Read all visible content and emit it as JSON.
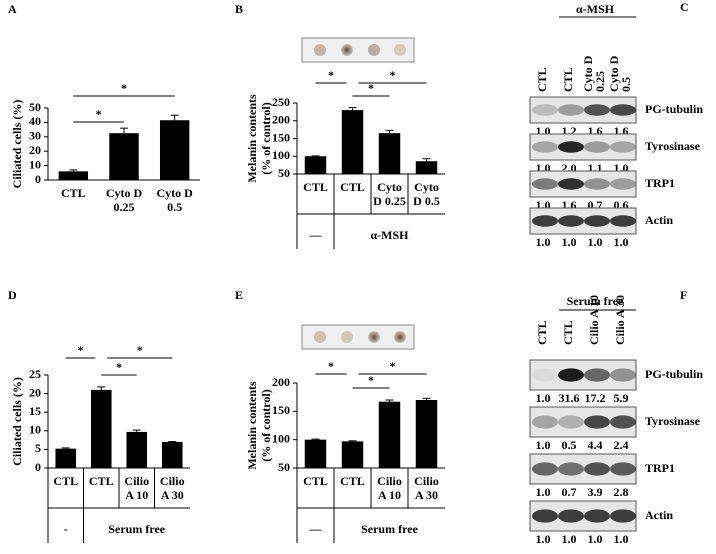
{
  "chart_data": [
    {
      "type": "bar",
      "panel": "A",
      "ylabel": [
        "Ciliated cells (%)"
      ],
      "categories": [
        [
          "CTL"
        ],
        [
          "Cyto D",
          "0.25"
        ],
        [
          "Cyto D",
          "0.5"
        ]
      ],
      "values": [
        6,
        32.5,
        41.5
      ],
      "errors": [
        1,
        3.5,
        3.5
      ],
      "color": "#000000",
      "ylim": [
        0,
        50
      ],
      "yticks": [
        0,
        10,
        20,
        30,
        40,
        50
      ],
      "significance": [
        {
          "pair": [
            0,
            1
          ],
          "label": "*"
        },
        {
          "pair": [
            0,
            2
          ],
          "label": "*"
        }
      ]
    },
    {
      "type": "bar",
      "panel": "B",
      "ylabel": [
        "Melanin contents",
        "(% of control)"
      ],
      "categories": [
        [
          "CTL"
        ],
        [
          "CTL"
        ],
        [
          "Cyto",
          "D 0.25"
        ],
        [
          "Cyto",
          "D 0.5"
        ]
      ],
      "values": [
        100,
        230,
        165,
        86
      ],
      "errors": [
        1,
        7,
        8,
        7
      ],
      "color": "#000000",
      "ylim": [
        50,
        250
      ],
      "yticks": [
        50,
        100,
        150,
        200,
        250
      ],
      "groups": [
        {
          "label": "—",
          "span": 1
        },
        {
          "label": "α-MSH",
          "span": 3
        }
      ],
      "significance": [
        {
          "pair": [
            0,
            1
          ],
          "label": "*"
        },
        {
          "pair": [
            1,
            2
          ],
          "label": "*"
        },
        {
          "pair": [
            1,
            3
          ],
          "label": "*"
        }
      ]
    },
    {
      "type": "bar",
      "panel": "D",
      "ylabel": [
        "Ciliated cells (%)"
      ],
      "categories": [
        [
          "CTL"
        ],
        [
          "CTL"
        ],
        [
          "Cilio",
          "A 10"
        ],
        [
          "Cilio",
          "A 30"
        ]
      ],
      "values": [
        5.2,
        21,
        9.7,
        7
      ],
      "errors": [
        0.2,
        0.8,
        0.5,
        0.1
      ],
      "color": "#000000",
      "ylim": [
        0,
        25
      ],
      "yticks": [
        0,
        5,
        10,
        15,
        20,
        25
      ],
      "groups": [
        {
          "label": "-",
          "span": 1
        },
        {
          "label": "Serum free",
          "span": 3
        }
      ],
      "significance": [
        {
          "pair": [
            0,
            1
          ],
          "label": "*"
        },
        {
          "pair": [
            1,
            2
          ],
          "label": "*"
        },
        {
          "pair": [
            1,
            3
          ],
          "label": "*"
        }
      ]
    },
    {
      "type": "bar",
      "panel": "E",
      "ylabel": [
        "Melanin contents",
        "(% of control)"
      ],
      "categories": [
        [
          "CTL"
        ],
        [
          "CTL"
        ],
        [
          "Cilio",
          "A 10"
        ],
        [
          "Cilio",
          "A 30"
        ]
      ],
      "values": [
        100,
        97,
        167,
        170
      ],
      "errors": [
        1,
        1,
        3,
        3
      ],
      "color": "#000000",
      "ylim": [
        50,
        200
      ],
      "yticks": [
        50,
        100,
        150,
        200
      ],
      "groups": [
        {
          "label": "—",
          "span": 1
        },
        {
          "label": "Serum free",
          "span": 3
        }
      ],
      "significance": [
        {
          "pair": [
            0,
            1
          ],
          "label": "*"
        },
        {
          "pair": [
            1,
            2
          ],
          "label": "*"
        },
        {
          "pair": [
            1,
            3
          ],
          "label": "*"
        }
      ]
    }
  ],
  "blots": [
    {
      "panel": "C",
      "group": "α-MSH",
      "lanes": [
        [
          "CTL"
        ],
        [
          "CTL"
        ],
        [
          "Cyto D",
          "0.25"
        ],
        [
          "Cyto D",
          "0.5"
        ]
      ],
      "rows": [
        {
          "protein": "PG-tubulin",
          "values": [
            "1.0",
            "1.2",
            "1.6",
            "1.6"
          ]
        },
        {
          "protein": "Tyrosinase",
          "values": [
            "1.0",
            "2.0",
            "1.1",
            "1.0"
          ]
        },
        {
          "protein": "TRP1",
          "values": [
            "1.0",
            "1.6",
            "0.7",
            "0.6"
          ]
        },
        {
          "protein": "Actin",
          "values": [
            "1.0",
            "1.0",
            "1.0",
            "1.0"
          ]
        }
      ]
    },
    {
      "panel": "F",
      "group": "Serum free",
      "lanes": [
        [
          "CTL"
        ],
        [
          "CTL"
        ],
        [
          "Cilio A 10"
        ],
        [
          "Cilio A 30"
        ]
      ],
      "rows": [
        {
          "protein": "PG-tubulin",
          "values": [
            "1.0",
            "31.6",
            "17.2",
            "5.9"
          ]
        },
        {
          "protein": "Tyrosinase",
          "values": [
            "1.0",
            "0.5",
            "4.4",
            "2.4"
          ]
        },
        {
          "protein": "TRP1",
          "values": [
            "1.0",
            "0.7",
            "3.9",
            "2.8"
          ]
        },
        {
          "protein": "Actin",
          "values": [
            "1.0",
            "1.0",
            "1.0",
            "1.0"
          ]
        }
      ]
    }
  ]
}
